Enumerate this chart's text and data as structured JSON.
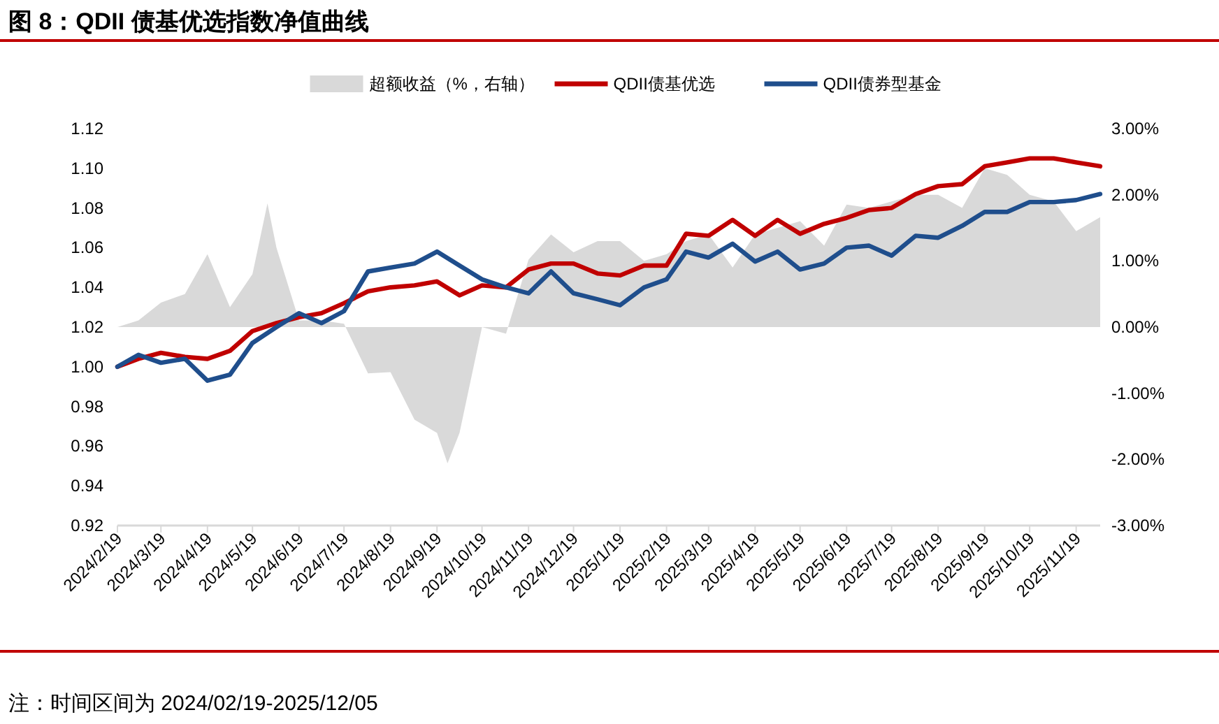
{
  "chart_data": {
    "type": "line",
    "title": "图 8：QDII 债基优选指数净值曲线",
    "x": [
      "2024-02-19",
      "2024-03-04",
      "2024-03-19",
      "2024-04-04",
      "2024-04-19",
      "2024-05-04",
      "2024-05-19",
      "2024-06-04",
      "2024-06-19",
      "2024-07-04",
      "2024-07-19",
      "2024-08-04",
      "2024-08-19",
      "2024-09-04",
      "2024-09-19",
      "2024-10-04",
      "2024-10-19",
      "2024-11-04",
      "2024-11-19",
      "2024-12-04",
      "2024-12-19",
      "2025-01-04",
      "2025-01-19",
      "2025-02-04",
      "2025-02-19",
      "2025-03-04",
      "2025-03-19",
      "2025-04-04",
      "2025-04-19",
      "2025-05-04",
      "2025-05-19",
      "2025-06-04",
      "2025-06-19",
      "2025-07-04",
      "2025-07-19",
      "2025-08-04",
      "2025-08-19",
      "2025-09-04",
      "2025-09-19",
      "2025-10-04",
      "2025-10-19",
      "2025-11-04",
      "2025-11-19",
      "2025-12-05"
    ],
    "series": [
      {
        "name": "超额收益（%，右轴）",
        "type": "area",
        "axis": "y2",
        "color": "#d9d9d9",
        "x": [
          "2024-02-19",
          "2024-03-04",
          "2024-03-19",
          "2024-04-04",
          "2024-04-19",
          "2024-05-04",
          "2024-05-19",
          "2024-05-29",
          "2024-06-04",
          "2024-06-19",
          "2024-07-04",
          "2024-07-19",
          "2024-08-04",
          "2024-08-19",
          "2024-09-04",
          "2024-09-19",
          "2024-09-26",
          "2024-10-04",
          "2024-10-19",
          "2024-11-04",
          "2024-11-19",
          "2024-12-04",
          "2024-12-19",
          "2025-01-04",
          "2025-01-19",
          "2025-02-04",
          "2025-02-19",
          "2025-03-04",
          "2025-03-19",
          "2025-04-04",
          "2025-04-19",
          "2025-05-04",
          "2025-05-19",
          "2025-06-04",
          "2025-06-19",
          "2025-07-04",
          "2025-07-19",
          "2025-08-04",
          "2025-08-19",
          "2025-09-04",
          "2025-09-19",
          "2025-10-04",
          "2025-10-19",
          "2025-11-04",
          "2025-11-19",
          "2025-12-05"
        ],
        "values": [
          0,
          0.1,
          0.37,
          0.5,
          1.1,
          0.3,
          0.8,
          1.87,
          1.2,
          0.1,
          0.1,
          0.05,
          -0.7,
          -0.68,
          -1.4,
          -1.6,
          -2.06,
          -1.6,
          0,
          -0.1,
          1.02,
          1.4,
          1.13,
          1.3,
          1.3,
          1.0,
          1.1,
          1.3,
          1.4,
          0.9,
          1.4,
          1.5,
          1.6,
          1.23,
          1.85,
          1.8,
          1.9,
          2.0,
          2.0,
          1.8,
          2.4,
          2.3,
          2.0,
          1.9,
          1.45,
          1.66
        ]
      },
      {
        "name": "QDII债基优选",
        "color": "#c00000",
        "values": [
          1.0,
          1.004,
          1.007,
          1.005,
          1.004,
          1.008,
          1.018,
          1.022,
          1.025,
          1.027,
          1.032,
          1.038,
          1.04,
          1.041,
          1.043,
          1.036,
          1.041,
          1.04,
          1.049,
          1.052,
          1.052,
          1.047,
          1.046,
          1.051,
          1.051,
          1.067,
          1.066,
          1.074,
          1.066,
          1.074,
          1.067,
          1.072,
          1.075,
          1.079,
          1.08,
          1.087,
          1.091,
          1.092,
          1.101,
          1.103,
          1.105,
          1.105,
          1.103,
          1.101
        ]
      },
      {
        "name": "QDII债券型基金",
        "color": "#1f4e8c",
        "values": [
          1.0,
          1.006,
          1.002,
          1.004,
          0.993,
          0.996,
          1.012,
          1.02,
          1.027,
          1.022,
          1.028,
          1.048,
          1.05,
          1.052,
          1.058,
          1.051,
          1.044,
          1.04,
          1.037,
          1.048,
          1.037,
          1.034,
          1.031,
          1.04,
          1.044,
          1.058,
          1.055,
          1.062,
          1.053,
          1.058,
          1.049,
          1.052,
          1.06,
          1.061,
          1.056,
          1.066,
          1.065,
          1.071,
          1.078,
          1.078,
          1.083,
          1.083,
          1.084,
          1.087
        ]
      }
    ],
    "xlim": [
      "2024-02-19",
      "2025-12-05"
    ],
    "xticks": [
      {
        "value": "2024-02-19",
        "label": "2024/2/19"
      },
      {
        "value": "2024-03-19",
        "label": "2024/3/19"
      },
      {
        "value": "2024-04-19",
        "label": "2024/4/19"
      },
      {
        "value": "2024-05-19",
        "label": "2024/5/19"
      },
      {
        "value": "2024-06-19",
        "label": "2024/6/19"
      },
      {
        "value": "2024-07-19",
        "label": "2024/7/19"
      },
      {
        "value": "2024-08-19",
        "label": "2024/8/19"
      },
      {
        "value": "2024-09-19",
        "label": "2024/9/19"
      },
      {
        "value": "2024-10-19",
        "label": "2024/10/19"
      },
      {
        "value": "2024-11-19",
        "label": "2024/11/19"
      },
      {
        "value": "2024-12-19",
        "label": "2024/12/19"
      },
      {
        "value": "2025-01-19",
        "label": "2025/1/19"
      },
      {
        "value": "2025-02-19",
        "label": "2025/2/19"
      },
      {
        "value": "2025-03-19",
        "label": "2025/3/19"
      },
      {
        "value": "2025-04-19",
        "label": "2025/4/19"
      },
      {
        "value": "2025-05-19",
        "label": "2025/5/19"
      },
      {
        "value": "2025-06-19",
        "label": "2025/6/19"
      },
      {
        "value": "2025-07-19",
        "label": "2025/7/19"
      },
      {
        "value": "2025-08-19",
        "label": "2025/8/19"
      },
      {
        "value": "2025-09-19",
        "label": "2025/9/19"
      },
      {
        "value": "2025-10-19",
        "label": "2025/10/19"
      },
      {
        "value": "2025-11-19",
        "label": "2025/11/19"
      }
    ],
    "ylim": [
      0.92,
      1.12
    ],
    "yticks": [
      {
        "value": 0.92,
        "label": "0.92"
      },
      {
        "value": 0.94,
        "label": "0.94"
      },
      {
        "value": 0.96,
        "label": "0.96"
      },
      {
        "value": 0.98,
        "label": "0.98"
      },
      {
        "value": 1.0,
        "label": "1.00"
      },
      {
        "value": 1.02,
        "label": "1.02"
      },
      {
        "value": 1.04,
        "label": "1.04"
      },
      {
        "value": 1.06,
        "label": "1.06"
      },
      {
        "value": 1.08,
        "label": "1.08"
      },
      {
        "value": 1.1,
        "label": "1.10"
      },
      {
        "value": 1.12,
        "label": "1.12"
      }
    ],
    "y2lim": [
      -3,
      3
    ],
    "y2ticks": [
      {
        "value": -3,
        "label": "-3.00%"
      },
      {
        "value": -2,
        "label": "-2.00%"
      },
      {
        "value": -1,
        "label": "-1.00%"
      },
      {
        "value": 0,
        "label": "0.00%"
      },
      {
        "value": 1,
        "label": "1.00%"
      },
      {
        "value": 2,
        "label": "2.00%"
      },
      {
        "value": 3,
        "label": "3.00%"
      }
    ],
    "legend": "top",
    "grid": false,
    "annotations": [
      "注：时间区间为 2024/02/19-2025/12/05"
    ]
  }
}
